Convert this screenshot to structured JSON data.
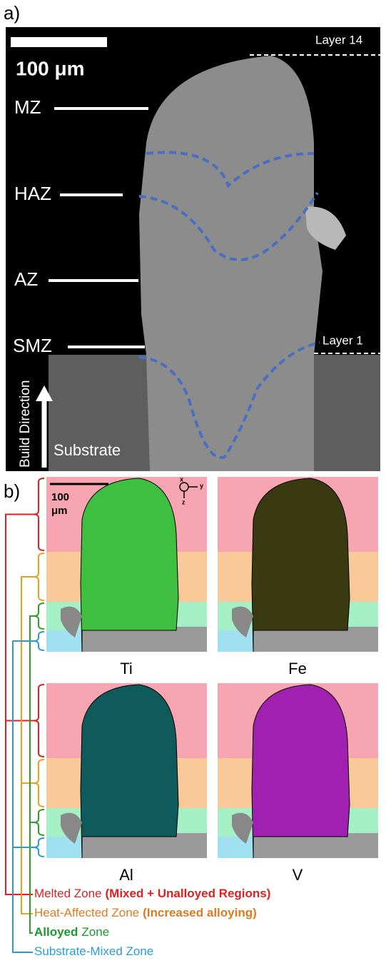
{
  "panel_a": {
    "label": "a)",
    "scale_bar": "100 μm",
    "layer_top": "Layer 14",
    "layer_bottom": "Layer 1",
    "zones": [
      "MZ",
      "HAZ",
      "AZ",
      "SMZ"
    ],
    "build_direction": "Build Direction",
    "substrate": "Substrate"
  },
  "panel_b": {
    "label": "b)",
    "scale_bar": [
      "100",
      "μm"
    ],
    "axes": [
      "x",
      "y",
      "z"
    ],
    "maps": [
      "Ti",
      "Fe",
      "Al",
      "V"
    ],
    "legend": [
      {
        "name": "Melted Zone",
        "note": "(Mixed + Unalloyed Regions)"
      },
      {
        "name": "Heat-Affected Zone",
        "note": "(Increased alloying)"
      },
      {
        "bold": "Alloyed",
        "name": "Zone"
      },
      {
        "name": "Substrate-Mixed Zone"
      }
    ]
  }
}
